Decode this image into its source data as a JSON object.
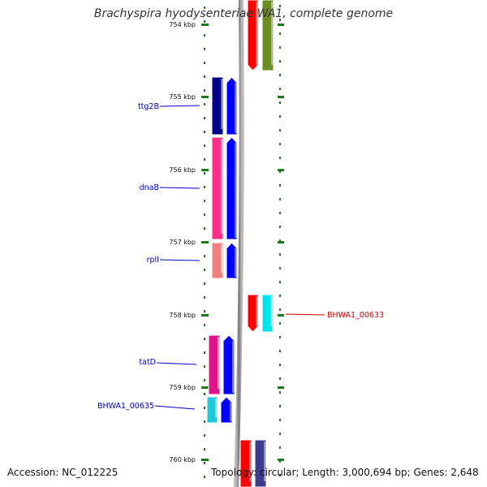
{
  "title": "Brachyspira hyodysenteriae WA1, complete genome",
  "accession": "Accession: NC_012225",
  "summary": "Topology: circular; Length: 3,000,694 bp; Genes: 2,648",
  "ruler": [
    "754 kbp",
    "755 kbp",
    "756 kbp",
    "757 kbp",
    "758 kbp",
    "759 kbp",
    "760 kbp"
  ],
  "genes": [
    {
      "name": "ttg2B",
      "color": "#0000cc"
    },
    {
      "name": "dnaB",
      "color": "#0000cc"
    },
    {
      "name": "rplI",
      "color": "#0000cc"
    },
    {
      "name": "BHWA1_00633",
      "color": "#cc0000"
    },
    {
      "name": "tatD",
      "color": "#0000cc"
    },
    {
      "name": "BHWA1_00635",
      "color": "#0000cc"
    }
  ],
  "colors": {
    "backbone": "#888888",
    "ruler_tick": "#1a7a1a",
    "cds_forward": "#0000ff",
    "cds_reverse": "#ff0000"
  }
}
